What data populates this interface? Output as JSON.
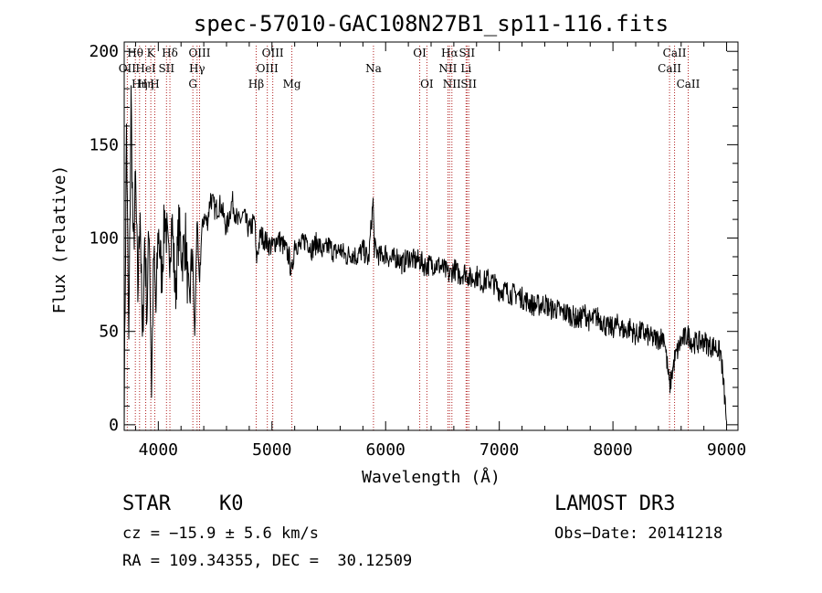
{
  "chart_data": {
    "type": "line",
    "title": "spec-57010-GAC108N27B1_sp11-116.fits",
    "xlabel": "Wavelength (Å)",
    "ylabel": "Flux (relative)",
    "xlim": [
      3700,
      9100
    ],
    "ylim": [
      -3,
      205
    ],
    "x_ticks": [
      4000,
      5000,
      6000,
      7000,
      8000,
      9000
    ],
    "x_tick_labels": [
      "4000",
      "5000",
      "6000",
      "7000",
      "8000",
      "9000"
    ],
    "y_ticks": [
      0,
      50,
      100,
      150,
      200
    ],
    "y_tick_labels": [
      "0",
      "50",
      "100",
      "150",
      "200"
    ],
    "grid": false,
    "series": [
      {
        "name": "spectrum",
        "x": [
          3700,
          3720,
          3740,
          3760,
          3780,
          3800,
          3820,
          3840,
          3860,
          3880,
          3900,
          3920,
          3940,
          3960,
          3980,
          4000,
          4030,
          4060,
          4090,
          4120,
          4150,
          4180,
          4210,
          4240,
          4270,
          4300,
          4320,
          4340,
          4360,
          4380,
          4400,
          4430,
          4460,
          4500,
          4550,
          4600,
          4650,
          4700,
          4750,
          4800,
          4850,
          4861,
          4900,
          4950,
          5000,
          5050,
          5100,
          5150,
          5175,
          5200,
          5250,
          5300,
          5350,
          5400,
          5450,
          5500,
          5550,
          5600,
          5650,
          5700,
          5750,
          5800,
          5850,
          5890,
          5900,
          5950,
          6000,
          6050,
          6100,
          6150,
          6200,
          6250,
          6300,
          6350,
          6400,
          6450,
          6500,
          6563,
          6600,
          6650,
          6700,
          6750,
          6800,
          6850,
          6900,
          6950,
          7000,
          7050,
          7100,
          7150,
          7200,
          7250,
          7300,
          7350,
          7400,
          7450,
          7500,
          7550,
          7600,
          7650,
          7700,
          7750,
          7800,
          7850,
          7900,
          7950,
          8000,
          8050,
          8100,
          8150,
          8200,
          8250,
          8300,
          8350,
          8400,
          8450,
          8498,
          8542,
          8600,
          8662,
          8700,
          8750,
          8800,
          8850,
          8900,
          8950,
          9000
        ],
        "values": [
          5,
          160,
          40,
          175,
          90,
          130,
          70,
          120,
          40,
          100,
          60,
          110,
          20,
          90,
          60,
          105,
          80,
          115,
          85,
          110,
          70,
          105,
          90,
          100,
          60,
          95,
          45,
          110,
          75,
          100,
          112,
          108,
          122,
          115,
          118,
          105,
          120,
          108,
          112,
          104,
          110,
          88,
          102,
          98,
          95,
          100,
          96,
          90,
          80,
          98,
          95,
          100,
          94,
          98,
          92,
          96,
          92,
          94,
          90,
          92,
          90,
          94,
          88,
          120,
          95,
          90,
          92,
          88,
          90,
          86,
          90,
          88,
          88,
          85,
          86,
          86,
          84,
          80,
          84,
          80,
          82,
          78,
          80,
          76,
          78,
          76,
          72,
          72,
          70,
          70,
          68,
          66,
          64,
          64,
          65,
          62,
          62,
          60,
          60,
          58,
          56,
          60,
          55,
          58,
          56,
          52,
          52,
          54,
          50,
          52,
          48,
          50,
          48,
          46,
          46,
          48,
          20,
          35,
          45,
          48,
          44,
          44,
          45,
          42,
          42,
          38,
          2
        ]
      }
    ],
    "line_marks": [
      {
        "label": "OII",
        "x": 3727,
        "row": 1
      },
      {
        "label": "Hθ",
        "x": 3798,
        "row": 0
      },
      {
        "label": "Hη",
        "x": 3835,
        "row": 2
      },
      {
        "label": "HeI",
        "x": 3889,
        "row": 1
      },
      {
        "label": "Hη",
        "x": 3889,
        "row": 2
      },
      {
        "label": "K",
        "x": 3934,
        "row": 0
      },
      {
        "label": "H",
        "x": 3969,
        "row": 2
      },
      {
        "label": "Hδ",
        "x": 4102,
        "row": 0
      },
      {
        "label": "SII",
        "x": 4072,
        "row": 1
      },
      {
        "label": "G",
        "x": 4304,
        "row": 2
      },
      {
        "label": "OIII",
        "x": 4363,
        "row": 0
      },
      {
        "label": "Hγ",
        "x": 4341,
        "row": 1
      },
      {
        "label": "Hβ",
        "x": 4861,
        "row": 2
      },
      {
        "label": "OIII",
        "x": 4959,
        "row": 1
      },
      {
        "label": "OIII",
        "x": 5007,
        "row": 0
      },
      {
        "label": "Mg",
        "x": 5175,
        "row": 2
      },
      {
        "label": "Na",
        "x": 5893,
        "row": 1
      },
      {
        "label": "OI",
        "x": 6300,
        "row": 0
      },
      {
        "label": "OI",
        "x": 6363,
        "row": 2
      },
      {
        "label": "NII",
        "x": 6548,
        "row": 1
      },
      {
        "label": "Hα",
        "x": 6563,
        "row": 0
      },
      {
        "label": "NII",
        "x": 6583,
        "row": 2
      },
      {
        "label": "SII",
        "x": 6716,
        "row": 0
      },
      {
        "label": "Li",
        "x": 6708,
        "row": 1
      },
      {
        "label": "SII",
        "x": 6731,
        "row": 2
      },
      {
        "label": "CaII",
        "x": 8542,
        "row": 0
      },
      {
        "label": "CaII",
        "x": 8498,
        "row": 1
      },
      {
        "label": "CaII",
        "x": 8662,
        "row": 2
      }
    ]
  },
  "info": {
    "object_class": "STAR",
    "subclass": "K0",
    "survey": "LAMOST DR3",
    "redshift": "cz = −15.9 ± 5.6 km/s",
    "obs_date": "Obs−Date: 20141218",
    "coords": "RA = 109.34355, DEC =  30.12509"
  },
  "colors": {
    "spectrum": "#000000",
    "line_marker": "#b22222"
  }
}
